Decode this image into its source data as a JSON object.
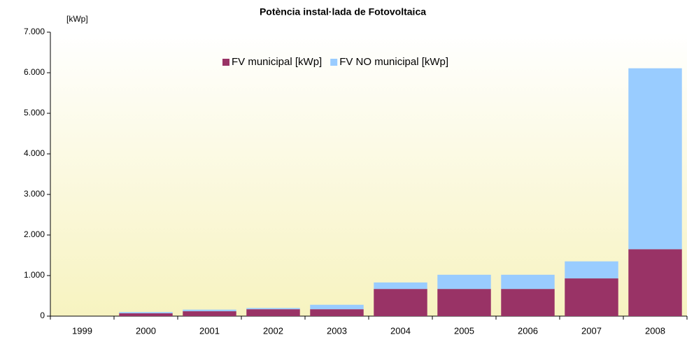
{
  "chart_data": {
    "type": "bar",
    "stacked": true,
    "title": "Potència instal·lada de Fotovoltaica",
    "y_label": "[kWp]",
    "categories": [
      "1999",
      "2000",
      "2001",
      "2002",
      "2003",
      "2004",
      "2005",
      "2006",
      "2007",
      "2008"
    ],
    "series": [
      {
        "name": "FV municipal [kWp]",
        "color": "#993366",
        "values": [
          0,
          70,
          120,
          170,
          170,
          670,
          670,
          670,
          930,
          1650
        ]
      },
      {
        "name": "FV NO municipal [kWp]",
        "color": "#99ccff",
        "values": [
          0,
          30,
          40,
          30,
          110,
          160,
          350,
          350,
          420,
          4460
        ]
      }
    ],
    "ylim": [
      0,
      7000
    ],
    "yticks": [
      0,
      {
        "value": 1000,
        "label": "1.000"
      },
      {
        "value": 2000,
        "label": "2.000"
      },
      {
        "value": 3000,
        "label": "3.000"
      },
      {
        "value": 4000,
        "label": "4.000"
      },
      {
        "value": 5000,
        "label": "5.000"
      },
      {
        "value": 6000,
        "label": "6.000"
      },
      {
        "value": 7000,
        "label": "7.000"
      }
    ],
    "legend": "top"
  }
}
